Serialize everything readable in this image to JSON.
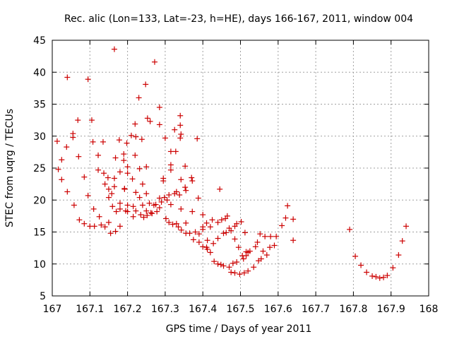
{
  "chart_data": {
    "type": "scatter",
    "title": "Rec. alic (Lon=133, Lat=-23, h=HE), days 166-167, 2011, window 004",
    "xlabel": "GPS time / Days of year 2011",
    "ylabel": "STEC from uqrg / TECUs",
    "xlim": [
      167,
      168
    ],
    "ylim": [
      5,
      45
    ],
    "xticks": [
      "167",
      "167.1",
      "167.2",
      "167.3",
      "167.4",
      "167.5",
      "167.6",
      "167.7",
      "167.8",
      "167.9",
      "168"
    ],
    "yticks": [
      "5",
      "10",
      "15",
      "20",
      "25",
      "30",
      "35",
      "40",
      "45"
    ],
    "grid": true,
    "marker": "+",
    "color": "#cc0000",
    "series": [
      {
        "points": [
          [
            167.013,
            29.2
          ],
          [
            167.016,
            24.8
          ],
          [
            167.025,
            26.3
          ],
          [
            167.025,
            23.2
          ],
          [
            167.038,
            28.3
          ],
          [
            167.04,
            39.2
          ],
          [
            167.04,
            21.3
          ],
          [
            167.055,
            30.4
          ],
          [
            167.055,
            29.8
          ],
          [
            167.058,
            19.2
          ],
          [
            167.068,
            32.5
          ],
          [
            167.07,
            26.8
          ],
          [
            167.072,
            16.9
          ],
          [
            167.085,
            23.6
          ],
          [
            167.085,
            16.3
          ],
          [
            167.095,
            38.9
          ],
          [
            167.095,
            20.7
          ],
          [
            167.1,
            15.9
          ],
          [
            167.105,
            32.5
          ],
          [
            167.108,
            29.1
          ],
          [
            167.11,
            18.6
          ],
          [
            167.112,
            15.9
          ],
          [
            167.122,
            27.0
          ],
          [
            167.122,
            24.7
          ],
          [
            167.125,
            17.4
          ],
          [
            167.13,
            16.1
          ],
          [
            167.135,
            29.1
          ],
          [
            167.137,
            24.2
          ],
          [
            167.14,
            22.5
          ],
          [
            167.14,
            15.8
          ],
          [
            167.148,
            23.5
          ],
          [
            167.15,
            21.7
          ],
          [
            167.15,
            20.4
          ],
          [
            167.15,
            16.5
          ],
          [
            167.155,
            14.8
          ],
          [
            167.158,
            21.0
          ],
          [
            167.16,
            19.0
          ],
          [
            167.165,
            43.6
          ],
          [
            167.165,
            23.4
          ],
          [
            167.165,
            22.1
          ],
          [
            167.168,
            26.6
          ],
          [
            167.168,
            15.1
          ],
          [
            167.17,
            18.2
          ],
          [
            167.178,
            29.4
          ],
          [
            167.18,
            24.4
          ],
          [
            167.18,
            19.5
          ],
          [
            167.18,
            18.6
          ],
          [
            167.18,
            15.9
          ],
          [
            167.19,
            27.2
          ],
          [
            167.19,
            26.2
          ],
          [
            167.192,
            21.8
          ],
          [
            167.192,
            21.7
          ],
          [
            167.195,
            18.3
          ],
          [
            167.198,
            28.9
          ],
          [
            167.2,
            25.2
          ],
          [
            167.2,
            24.2
          ],
          [
            167.2,
            19.2
          ],
          [
            167.2,
            18.2
          ],
          [
            167.21,
            30.1
          ],
          [
            167.213,
            23.3
          ],
          [
            167.215,
            19.0
          ],
          [
            167.215,
            17.4
          ],
          [
            167.22,
            31.9
          ],
          [
            167.22,
            27.0
          ],
          [
            167.222,
            29.9
          ],
          [
            167.222,
            21.2
          ],
          [
            167.222,
            18.3
          ],
          [
            167.23,
            36.0
          ],
          [
            167.232,
            24.9
          ],
          [
            167.232,
            20.4
          ],
          [
            167.235,
            17.7
          ],
          [
            167.238,
            29.5
          ],
          [
            167.24,
            22.5
          ],
          [
            167.24,
            19.2
          ],
          [
            167.243,
            17.3
          ],
          [
            167.248,
            38.1
          ],
          [
            167.25,
            25.2
          ],
          [
            167.25,
            21.0
          ],
          [
            167.25,
            18.3
          ],
          [
            167.252,
            17.6
          ],
          [
            167.253,
            32.8
          ],
          [
            167.258,
            19.5
          ],
          [
            167.26,
            32.3
          ],
          [
            167.262,
            18.0
          ],
          [
            167.265,
            17.9
          ],
          [
            167.27,
            19.2
          ],
          [
            167.272,
            41.6
          ],
          [
            167.275,
            19.3
          ],
          [
            167.278,
            18.2
          ],
          [
            167.285,
            34.5
          ],
          [
            167.285,
            31.8
          ],
          [
            167.285,
            20.3
          ],
          [
            167.285,
            18.8
          ],
          [
            167.29,
            19.7
          ],
          [
            167.295,
            23.4
          ],
          [
            167.295,
            23.0
          ],
          [
            167.298,
            20.4
          ],
          [
            167.3,
            29.7
          ],
          [
            167.302,
            17.1
          ],
          [
            167.305,
            20.0
          ],
          [
            167.31,
            20.8
          ],
          [
            167.31,
            16.5
          ],
          [
            167.315,
            27.6
          ],
          [
            167.315,
            25.5
          ],
          [
            167.315,
            24.7
          ],
          [
            167.315,
            19.3
          ],
          [
            167.32,
            16.2
          ],
          [
            167.325,
            31.0
          ],
          [
            167.325,
            21.0
          ],
          [
            167.328,
            27.6
          ],
          [
            167.33,
            21.3
          ],
          [
            167.33,
            16.3
          ],
          [
            167.335,
            15.8
          ],
          [
            167.338,
            20.8
          ],
          [
            167.34,
            33.2
          ],
          [
            167.34,
            31.7
          ],
          [
            167.34,
            29.7
          ],
          [
            167.342,
            30.3
          ],
          [
            167.342,
            23.2
          ],
          [
            167.342,
            18.6
          ],
          [
            167.343,
            15.3
          ],
          [
            167.353,
            25.3
          ],
          [
            167.353,
            22.0
          ],
          [
            167.355,
            21.5
          ],
          [
            167.355,
            16.4
          ],
          [
            167.355,
            14.8
          ],
          [
            167.365,
            14.8
          ],
          [
            167.37,
            23.5
          ],
          [
            167.372,
            23.0
          ],
          [
            167.372,
            18.2
          ],
          [
            167.375,
            13.8
          ],
          [
            167.38,
            15.0
          ],
          [
            167.385,
            29.6
          ],
          [
            167.388,
            20.3
          ],
          [
            167.39,
            14.7
          ],
          [
            167.39,
            13.4
          ],
          [
            167.4,
            17.7
          ],
          [
            167.4,
            15.8
          ],
          [
            167.4,
            15.4
          ],
          [
            167.4,
            12.7
          ],
          [
            167.41,
            16.4
          ],
          [
            167.41,
            12.6
          ],
          [
            167.412,
            13.7
          ],
          [
            167.412,
            12.3
          ],
          [
            167.42,
            15.8
          ],
          [
            167.42,
            11.8
          ],
          [
            167.425,
            16.9
          ],
          [
            167.428,
            13.2
          ],
          [
            167.43,
            10.4
          ],
          [
            167.44,
            16.5
          ],
          [
            167.44,
            14.0
          ],
          [
            167.44,
            10.0
          ],
          [
            167.445,
            21.7
          ],
          [
            167.448,
            9.9
          ],
          [
            167.45,
            16.9
          ],
          [
            167.455,
            14.8
          ],
          [
            167.455,
            9.7
          ],
          [
            167.46,
            17.1
          ],
          [
            167.462,
            14.9
          ],
          [
            167.465,
            17.5
          ],
          [
            167.47,
            15.6
          ],
          [
            167.47,
            9.5
          ],
          [
            167.475,
            15.2
          ],
          [
            167.475,
            8.7
          ],
          [
            167.48,
            10.1
          ],
          [
            167.485,
            15.9
          ],
          [
            167.485,
            13.9
          ],
          [
            167.485,
            8.6
          ],
          [
            167.49,
            16.3
          ],
          [
            167.49,
            10.3
          ],
          [
            167.495,
            12.6
          ],
          [
            167.498,
            8.4
          ],
          [
            167.502,
            16.6
          ],
          [
            167.505,
            11.3
          ],
          [
            167.508,
            10.8
          ],
          [
            167.51,
            8.6
          ],
          [
            167.512,
            14.9
          ],
          [
            167.515,
            11.9
          ],
          [
            167.515,
            11.3
          ],
          [
            167.52,
            8.9
          ],
          [
            167.52,
            11.8
          ],
          [
            167.525,
            12.0
          ],
          [
            167.535,
            9.5
          ],
          [
            167.54,
            12.7
          ],
          [
            167.545,
            13.4
          ],
          [
            167.548,
            10.5
          ],
          [
            167.552,
            14.7
          ],
          [
            167.555,
            10.8
          ],
          [
            167.56,
            12.0
          ],
          [
            167.565,
            14.3
          ],
          [
            167.57,
            11.4
          ],
          [
            167.578,
            12.6
          ],
          [
            167.58,
            14.3
          ],
          [
            167.59,
            12.9
          ],
          [
            167.595,
            14.3
          ],
          [
            167.61,
            16.0
          ],
          [
            167.62,
            17.2
          ],
          [
            167.625,
            19.1
          ],
          [
            167.64,
            13.7
          ],
          [
            167.64,
            17.0
          ],
          [
            167.79,
            15.4
          ],
          [
            167.805,
            11.2
          ],
          [
            167.82,
            9.8
          ],
          [
            167.835,
            8.7
          ],
          [
            167.85,
            8.1
          ],
          [
            167.86,
            8.0
          ],
          [
            167.87,
            7.8
          ],
          [
            167.88,
            7.9
          ],
          [
            167.89,
            8.2
          ],
          [
            167.905,
            9.4
          ],
          [
            167.92,
            11.4
          ],
          [
            167.93,
            13.6
          ],
          [
            167.94,
            15.9
          ]
        ]
      }
    ]
  }
}
